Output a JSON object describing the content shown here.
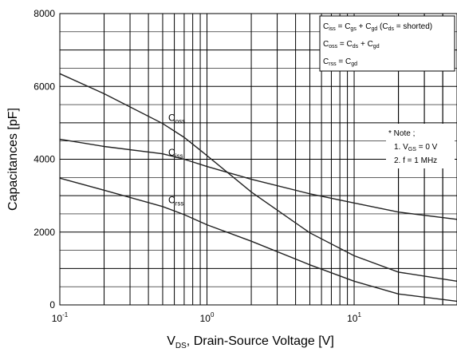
{
  "chart_data": {
    "type": "line",
    "x_scale": "log",
    "xlim": [
      0.1,
      50
    ],
    "ylim": [
      0,
      8000
    ],
    "grid": true,
    "xlabel": {
      "main": "V",
      "sub": "DS",
      "rest": ", Drain-Source Voltage [V]"
    },
    "ylabel": "Capacitances [pF]",
    "x_ticks": [
      {
        "value": 0.1,
        "base": "10",
        "exp": "-1"
      },
      {
        "value": 1,
        "base": "10",
        "exp": "0"
      },
      {
        "value": 10,
        "base": "10",
        "exp": "1"
      }
    ],
    "y_ticks": [
      "0",
      "2000",
      "4000",
      "6000",
      "8000"
    ],
    "y_tick_values": [
      0,
      2000,
      4000,
      6000,
      8000
    ],
    "series": [
      {
        "name": "Coss",
        "label_main": "C",
        "label_sub": "oss",
        "x": [
          0.1,
          0.2,
          0.5,
          0.7,
          1.0,
          2.0,
          5.0,
          10,
          20,
          50
        ],
        "y": [
          6350,
          5800,
          4980,
          4600,
          4100,
          3100,
          1980,
          1350,
          900,
          650
        ]
      },
      {
        "name": "Ciss",
        "label_main": "C",
        "label_sub": "iss",
        "x": [
          0.1,
          0.2,
          0.5,
          0.7,
          1.0,
          2.0,
          5.0,
          10,
          20,
          50
        ],
        "y": [
          4550,
          4350,
          4150,
          4000,
          3800,
          3450,
          3050,
          2800,
          2550,
          2350
        ]
      },
      {
        "name": "Crss",
        "label_main": "C",
        "label_sub": "rss",
        "x": [
          0.1,
          0.2,
          0.5,
          0.7,
          1.0,
          2.0,
          5.0,
          10,
          20,
          50
        ],
        "y": [
          3480,
          3150,
          2700,
          2480,
          2200,
          1750,
          1100,
          650,
          300,
          100
        ]
      }
    ],
    "legend_box": {
      "lines": [
        [
          {
            "t": "C"
          },
          {
            "t": "iss",
            "sub": true
          },
          {
            "t": " = C"
          },
          {
            "t": "gs",
            "sub": true
          },
          {
            "t": " + C"
          },
          {
            "t": "gd",
            "sub": true
          },
          {
            "t": " (C"
          },
          {
            "t": "ds",
            "sub": true
          },
          {
            "t": " = shorted)"
          }
        ],
        [
          {
            "t": "C"
          },
          {
            "t": "oss",
            "sub": true
          },
          {
            "t": " = C"
          },
          {
            "t": "ds",
            "sub": true
          },
          {
            "t": " + C"
          },
          {
            "t": "gd",
            "sub": true
          }
        ],
        [
          {
            "t": "C"
          },
          {
            "t": "rss",
            "sub": true
          },
          {
            "t": " = C"
          },
          {
            "t": "gd",
            "sub": true
          }
        ]
      ]
    },
    "note": {
      "title": "* Note ;",
      "lines": [
        [
          {
            "t": "1. V"
          },
          {
            "t": "GS",
            "sub": true
          },
          {
            "t": " = 0 V"
          }
        ],
        [
          {
            "t": "2. f = 1 MHz"
          }
        ]
      ]
    }
  }
}
